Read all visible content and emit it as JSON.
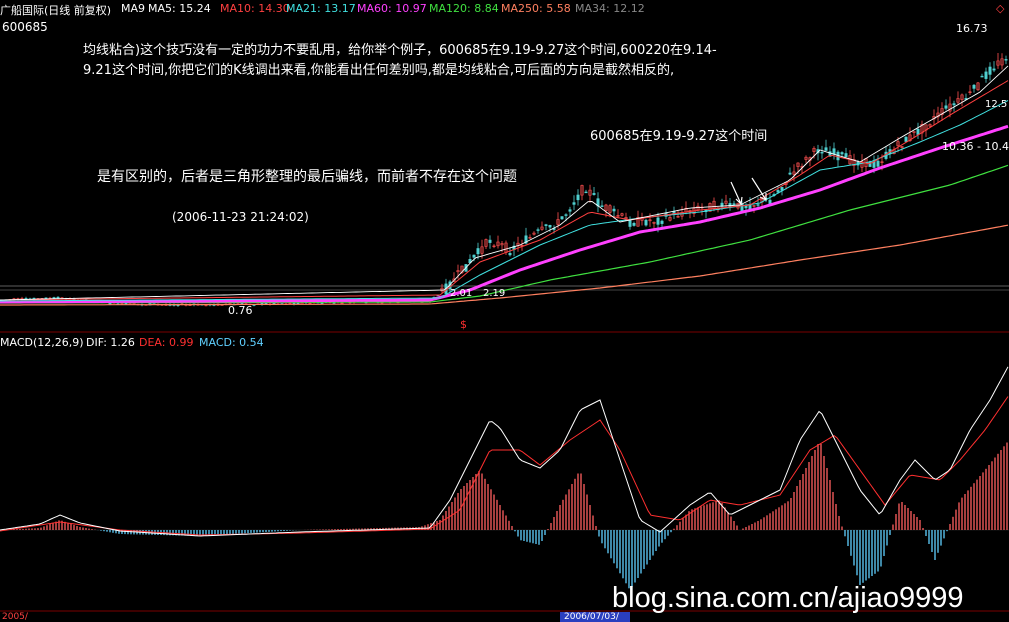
{
  "header": {
    "stock_title": "广船国际(日线 前复权)",
    "ma9": "MA9",
    "ma5": "MA5: 15.24",
    "ma10": "MA10: 14.30",
    "ma21": "MA21: 13.17",
    "ma60": "MA60: 10.97",
    "ma120": "MA120: 8.84",
    "ma250": "MA250: 5.58",
    "ma34": "MA34: 12.12",
    "code": "600685"
  },
  "price_labels": {
    "high": "16.73",
    "low": "0.76",
    "level_2_01": "2.01",
    "level_2_19": "2.19",
    "right_12": "12.5",
    "right_range": "10.36 - 10.40"
  },
  "annotations": {
    "comment_line1": "均线粘合)这个技巧没有一定的功力不要乱用，给你举个例子，600685在9.19-9.27这个时间,600220在9.14-",
    "comment_line2": "9.21这个时间,你把它们的K线调出来看,你能看出任何差别吗,都是均线粘合,可后面的方向是截然相反的,",
    "highlight_label": "600685在9.19-9.27这个时间",
    "reply": "是有区别的，后者是三角形整理的最后骗线，而前者不存在这个问题",
    "timestamp": "(2006-11-23 21:24:02)"
  },
  "macd": {
    "label": "MACD(12,26,9)",
    "dif": "DIF: 1.26",
    "dea": "DEA: 0.99",
    "macd": "MACD: 0.54"
  },
  "footer": {
    "date_left": "2005/",
    "date_cursor": "2006/07/03/",
    "watermark": "blog.sina.com.cn/ajiao9999"
  },
  "marker": "$",
  "colors": {
    "background": "#000000",
    "ma5": "#ffffff",
    "ma10": "#ff4040",
    "ma21": "#40e0e0",
    "ma60": "#ff40ff",
    "ma120": "#40e040",
    "ma250": "#ff8060",
    "dif": "#ffffff",
    "dea": "#ff3030",
    "macd_pos": "#ff6060",
    "macd_neg": "#60d0ff"
  }
}
